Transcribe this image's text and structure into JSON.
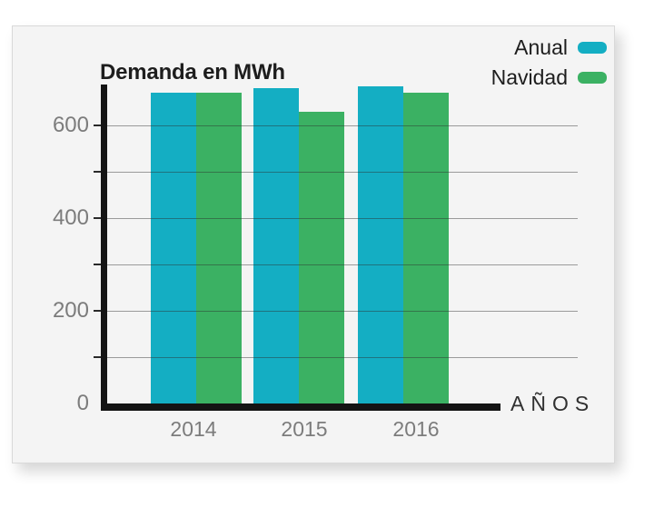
{
  "page": {
    "background": "#ffffff"
  },
  "card": {
    "background": "#f4f4f4",
    "border_color": "#d9d9d9"
  },
  "chart_data": {
    "type": "bar",
    "title": "Demanda en MWh",
    "xlabel": "AÑOS",
    "ylabel": "",
    "categories": [
      "2014",
      "2015",
      "2016"
    ],
    "series": [
      {
        "name": "Anual",
        "color": "#14aec3",
        "values": [
          670,
          680,
          685
        ]
      },
      {
        "name": "Navidad",
        "color": "#3bb163",
        "values": [
          670,
          630,
          670
        ]
      }
    ],
    "ylim": [
      0,
      700
    ],
    "gridline_values": [
      100,
      200,
      300,
      400,
      500,
      600
    ],
    "ytick_label_values": [
      0,
      200,
      400,
      600
    ],
    "grid": true,
    "legend_position": "top-right",
    "axis_color": "#141414",
    "gridline_color": "#8f8f8f",
    "tick_label_color": "#7c7c7c",
    "title_color": "#1d1d1d"
  }
}
